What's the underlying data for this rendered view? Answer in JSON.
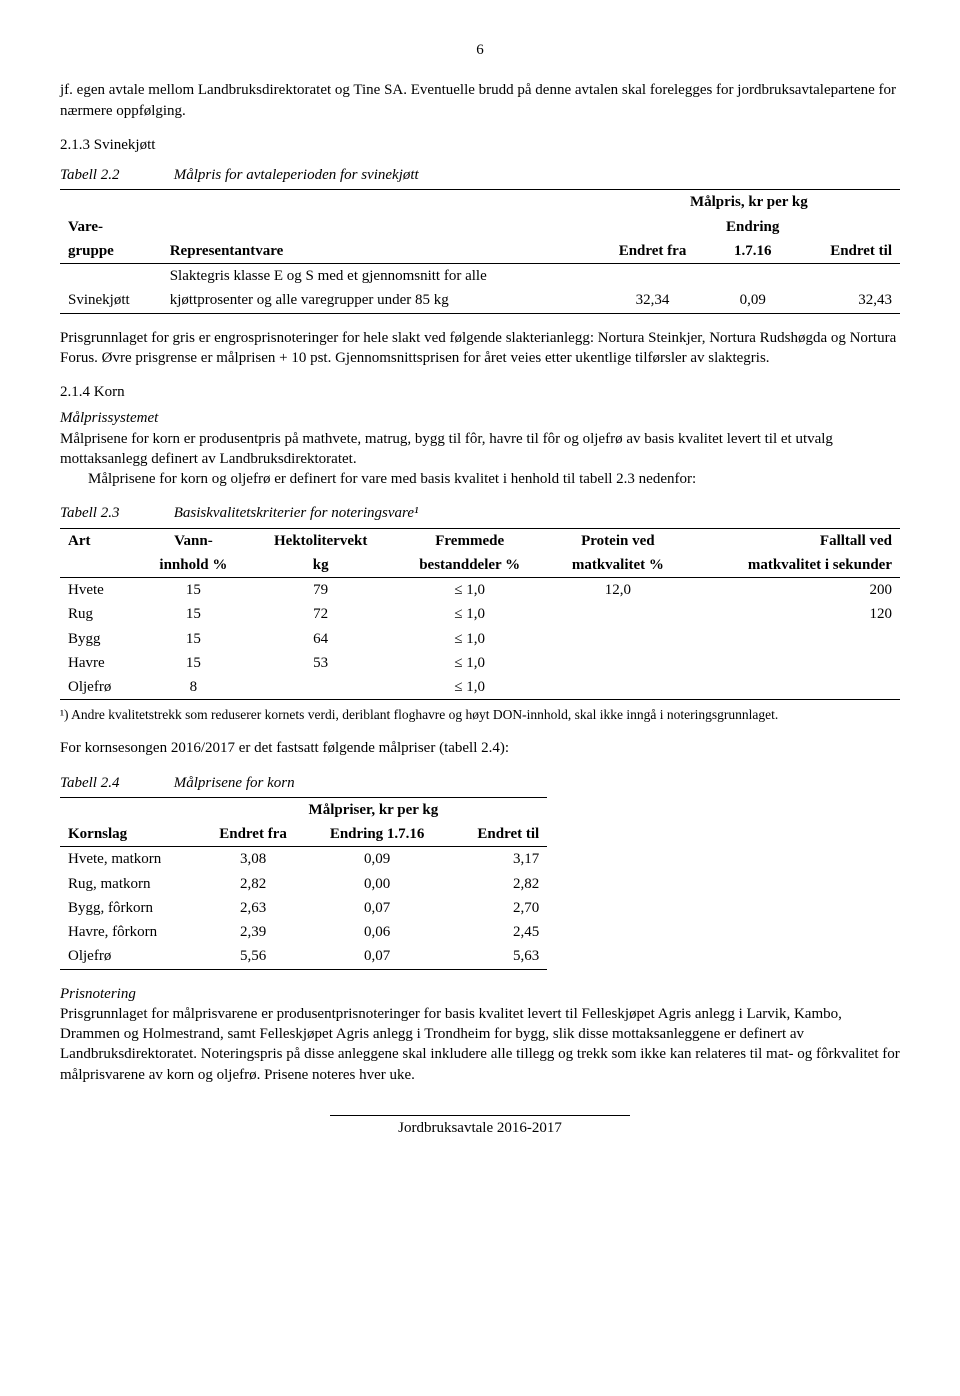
{
  "page_number": "6",
  "intro_para": "jf. egen avtale mellom Landbruksdirektoratet og Tine SA. Eventuelle brudd på denne avtalen skal forelegges for jordbruksavtalepartene for nærmere oppfølging.",
  "sec213_heading": "2.1.3 Svinekjøtt",
  "table22": {
    "caption_num": "Tabell 2.2",
    "caption_text": "Målpris for avtaleperioden for svinekjøtt",
    "super_header": "Målpris, kr per kg",
    "col_varegruppe_1": "Vare-",
    "col_varegruppe_2": "gruppe",
    "col_repvare": "Representantvare",
    "col_endretfra": "Endret fra",
    "col_endring_1": "Endring",
    "col_endring_2": "1.7.16",
    "col_endrettil": "Endret til",
    "row": {
      "group": "Svinekjøtt",
      "rep_line1": "Slaktegris klasse E og S med et gjennomsnitt for alle",
      "rep_line2": "kjøttprosenter og alle varegrupper under 85 kg",
      "fra": "32,34",
      "endring": "0,09",
      "til": "32,43"
    }
  },
  "para_afterT22": "Prisgrunnlaget for gris er engrosprisnoteringer for hele slakt ved følgende slakterianlegg: Nortura Steinkjer, Nortura Rudshøgda og Nortura Forus. Øvre prisgrense er målprisen + 10 pst. Gjennomsnittsprisen for året veies etter ukentlige tilførsler av slaktegris.",
  "sec214_heading": "2.1.4 Korn",
  "malprissystemet": {
    "heading": "Målprissystemet",
    "p1": "Målprisene for korn er produsentpris på mathvete, matrug, bygg til fôr, havre til fôr og oljefrø av basis kvalitet levert til et utvalg mottaksanlegg definert av Landbruksdirektoratet.",
    "p2": "Målprisene for korn og oljefrø er definert for vare med basis kvalitet i henhold til tabell 2.3 nedenfor:"
  },
  "table23": {
    "caption_num": "Tabell 2.3",
    "caption_text": "Basiskvalitetskriterier for noteringsvare¹",
    "headers": {
      "art": "Art",
      "vann1": "Vann-",
      "vann2": "innhold %",
      "hl1": "Hektolitervekt",
      "hl2": "kg",
      "frem1": "Fremmede",
      "frem2": "bestanddeler %",
      "protein1": "Protein ved",
      "protein2": "matkvalitet %",
      "fall1": "Falltall ved",
      "fall2": "matkvalitet i sekunder"
    },
    "rows": [
      {
        "art": "Hvete",
        "vann": "15",
        "hl": "79",
        "frem": "≤ 1,0",
        "protein": "12,0",
        "fall": "200"
      },
      {
        "art": "Rug",
        "vann": "15",
        "hl": "72",
        "frem": "≤ 1,0",
        "protein": "",
        "fall": "120"
      },
      {
        "art": "Bygg",
        "vann": "15",
        "hl": "64",
        "frem": "≤ 1,0",
        "protein": "",
        "fall": ""
      },
      {
        "art": "Havre",
        "vann": "15",
        "hl": "53",
        "frem": "≤ 1,0",
        "protein": "",
        "fall": ""
      },
      {
        "art": "Oljefrø",
        "vann": "8",
        "hl": "",
        "frem": "≤ 1,0",
        "protein": "",
        "fall": ""
      }
    ],
    "footnote": "¹) Andre kvalitetstrekk som reduserer kornets verdi, deriblant floghavre og høyt DON-innhold, skal ikke inngå i noteringsgrunnlaget."
  },
  "para_afterT23": "For kornsesongen 2016/2017 er det fastsatt følgende målpriser (tabell 2.4):",
  "table24": {
    "caption_num": "Tabell 2.4",
    "caption_text": "Målprisene for korn",
    "super_header": "Målpriser, kr per kg",
    "headers": {
      "kornslag": "Kornslag",
      "fra": "Endret fra",
      "endring": "Endring 1.7.16",
      "til": "Endret til"
    },
    "rows": [
      {
        "slag": "Hvete, matkorn",
        "fra": "3,08",
        "endring": "0,09",
        "til": "3,17"
      },
      {
        "slag": "Rug, matkorn",
        "fra": "2,82",
        "endring": "0,00",
        "til": "2,82"
      },
      {
        "slag": "Bygg, fôrkorn",
        "fra": "2,63",
        "endring": "0,07",
        "til": "2,70"
      },
      {
        "slag": "Havre, fôrkorn",
        "fra": "2,39",
        "endring": "0,06",
        "til": "2,45"
      },
      {
        "slag": "Oljefrø",
        "fra": "5,56",
        "endring": "0,07",
        "til": "5,63"
      }
    ]
  },
  "prisnotering": {
    "heading": "Prisnotering",
    "body": "Prisgrunnlaget for målprisvarene er produsentprisnoteringer for basis kvalitet levert til Felleskjøpet Agris anlegg i Larvik, Kambo, Drammen og Holmestrand, samt Felleskjøpet Agris anlegg i Trondheim for bygg, slik disse mottaksanleggene er definert av Landbruksdirektoratet. Noteringspris på disse anleggene skal inkludere alle tillegg og trekk som ikke kan relateres til mat- og fôrkvalitet for målprisvarene av korn og oljefrø. Prisene noteres hver uke."
  },
  "footer": "Jordbruksavtale 2016-2017"
}
